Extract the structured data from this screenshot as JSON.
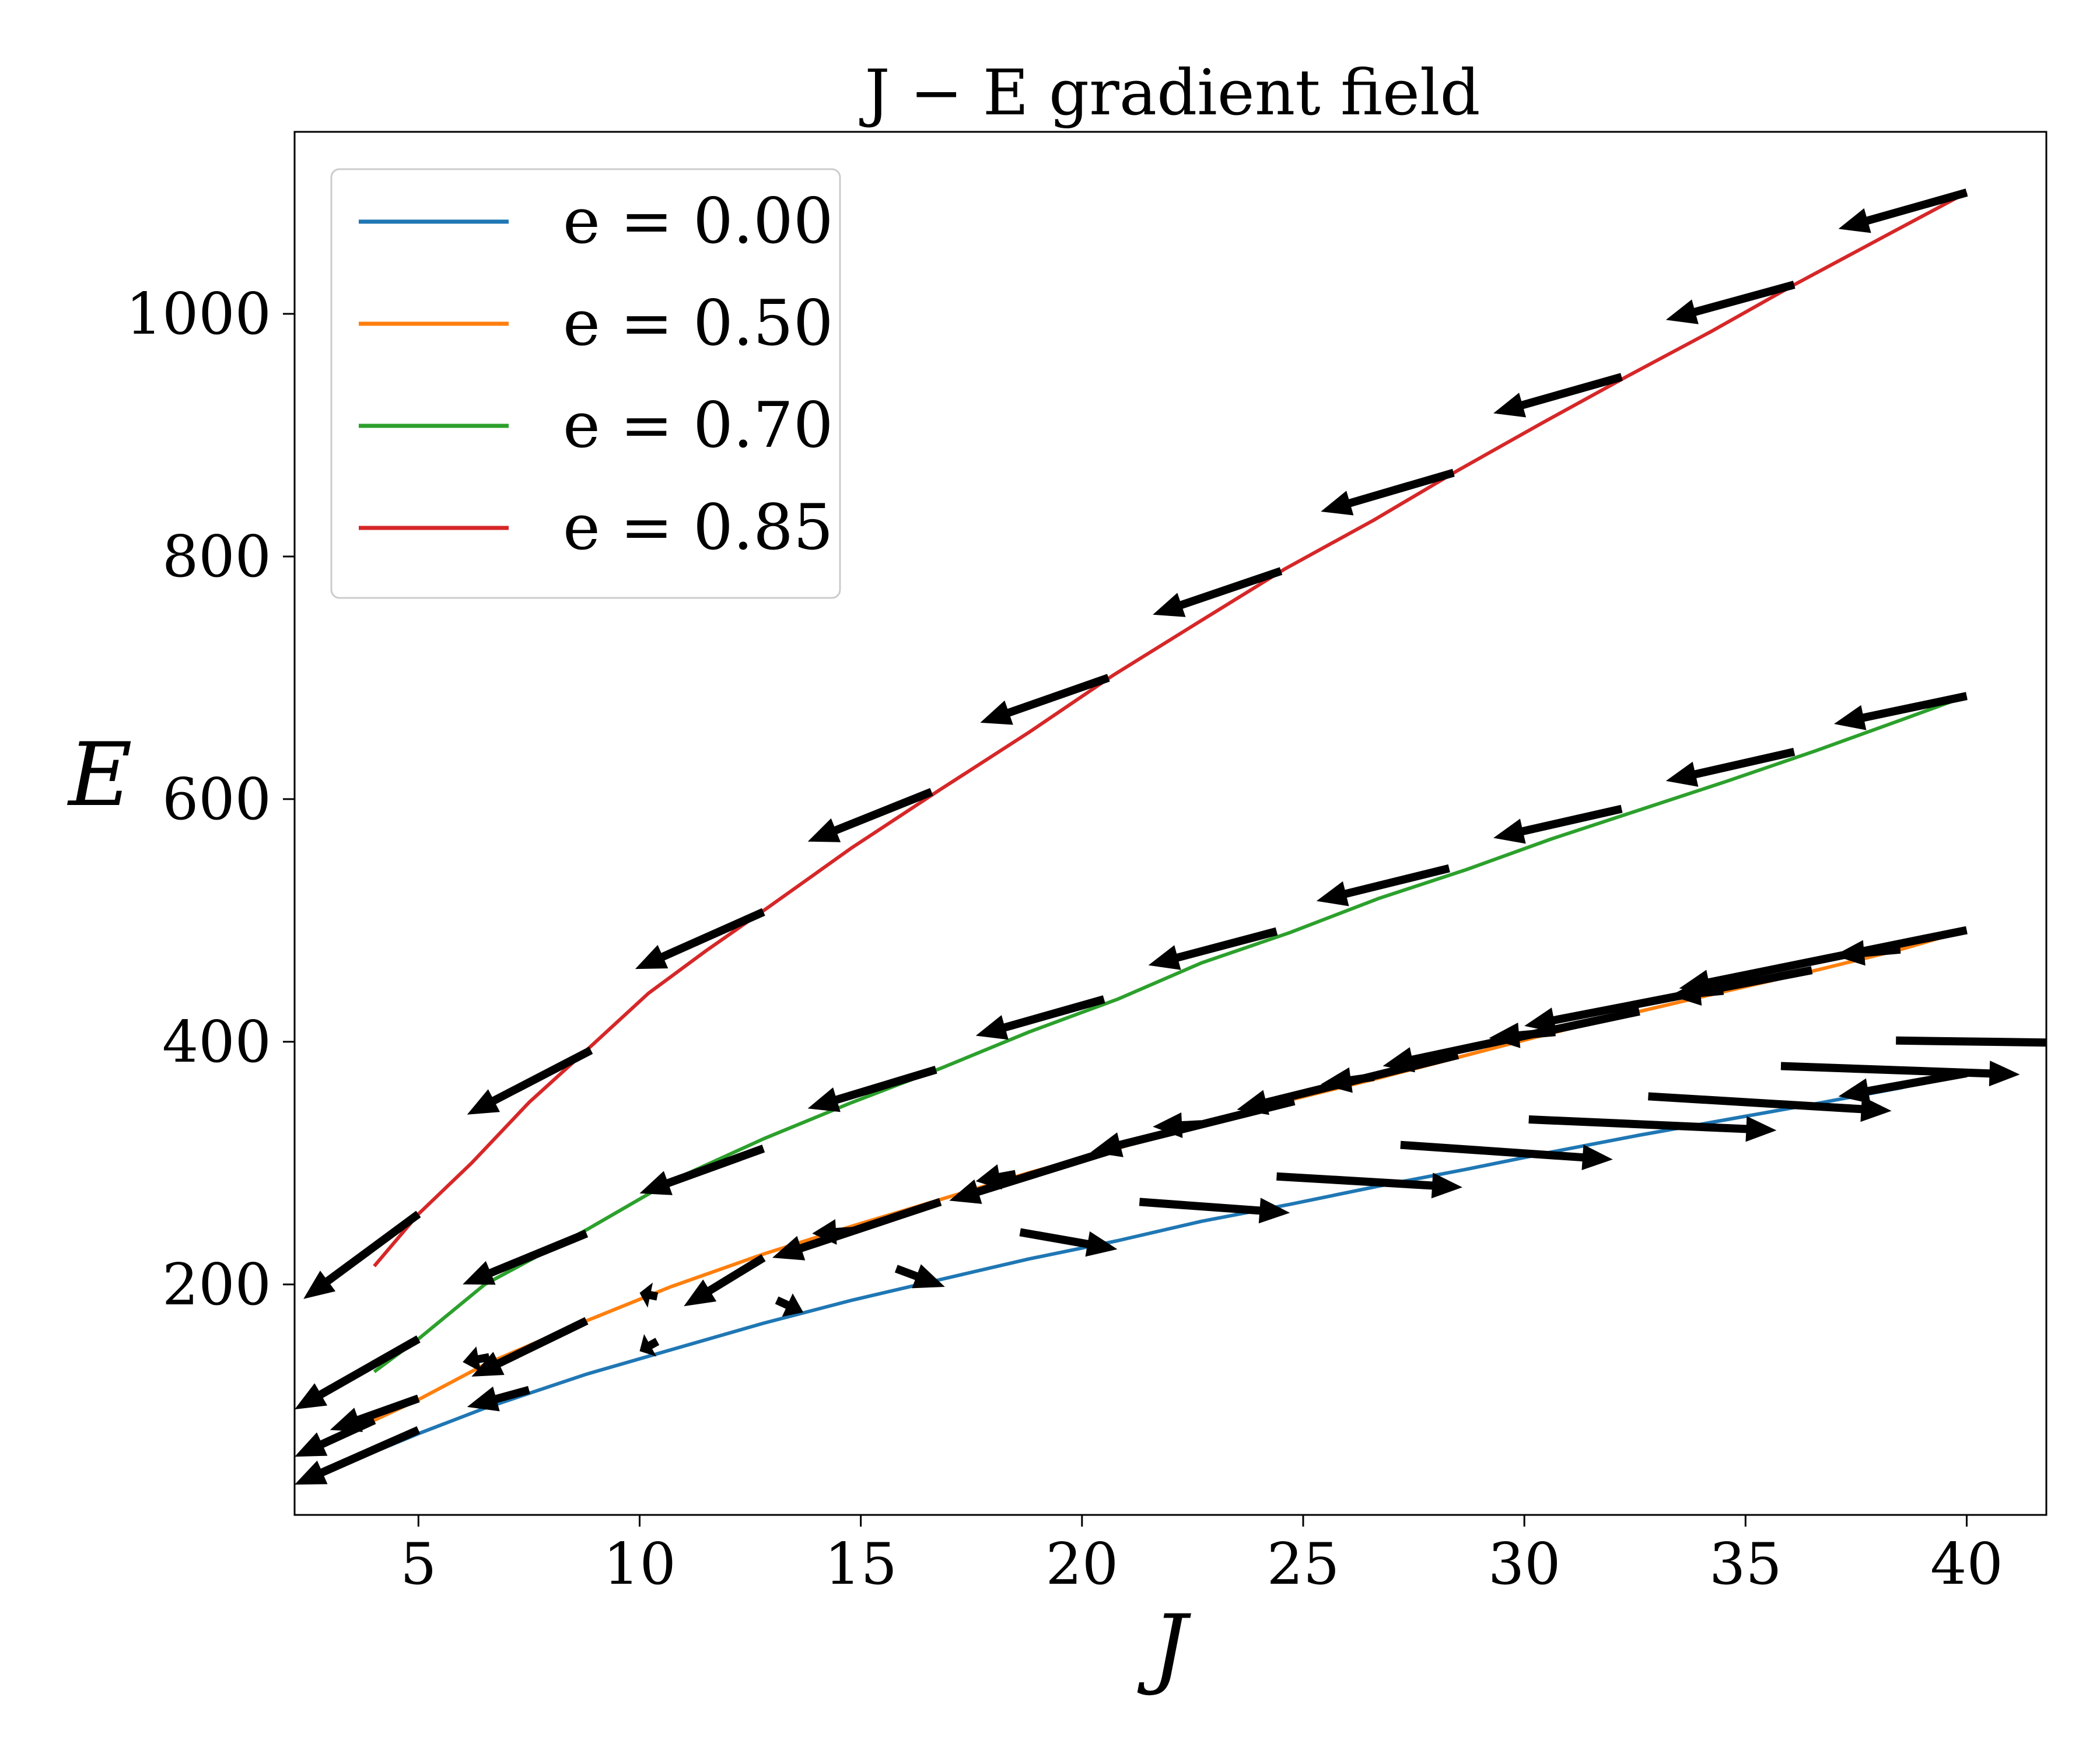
{
  "chart_data": {
    "type": "line",
    "title": "J − E gradient field",
    "xlabel": "J",
    "ylabel": "E",
    "xlim": [
      2.2,
      41.8
    ],
    "ylim": [
      10,
      1150
    ],
    "xticks": [
      5,
      10,
      15,
      20,
      25,
      30,
      35,
      40
    ],
    "yticks": [
      200,
      400,
      600,
      800,
      1000
    ],
    "grid": false,
    "legend_position": "top-left",
    "series": [
      {
        "name": "e = 0.00",
        "color": "#1f77b4",
        "x": [
          4,
          5,
          6.5,
          8.8,
          10.7,
          12.8,
          14.8,
          16.8,
          18.8,
          20.8,
          22.7,
          24.7,
          26.7,
          28.7,
          30.6,
          32.6,
          34.6,
          36.6,
          38.5,
          40
        ],
        "y": [
          62,
          77,
          98,
          126,
          146,
          168,
          187,
          204,
          221,
          236,
          252,
          266,
          281,
          295,
          309,
          323,
          336,
          349,
          362,
          375
        ]
      },
      {
        "name": "e = 0.50",
        "color": "#ff7f0e",
        "x": [
          4,
          5,
          6.5,
          8.8,
          10.7,
          12.8,
          14.8,
          16.8,
          18.8,
          20.8,
          22.7,
          24.7,
          26.7,
          28.7,
          30.6,
          32.6,
          34.6,
          36.6,
          38.5,
          40
        ],
        "y": [
          88,
          105,
          134,
          170,
          198,
          225,
          248,
          270,
          292,
          312,
          333,
          352,
          370,
          389,
          407,
          425,
          442,
          459,
          476,
          492
        ]
      },
      {
        "name": "e = 0.70",
        "color": "#2ca02c",
        "x": [
          4,
          5,
          6.5,
          8.8,
          10.7,
          12.8,
          14.8,
          16.8,
          18.8,
          20.8,
          22.7,
          24.7,
          26.7,
          28.7,
          30.6,
          32.6,
          34.6,
          36.6,
          38.5,
          40
        ],
        "y": [
          128,
          155,
          200,
          245,
          285,
          320,
          350,
          378,
          408,
          435,
          465,
          490,
          518,
          542,
          567,
          591,
          615,
          640,
          665,
          685
        ]
      },
      {
        "name": "e = 0.85",
        "color": "#d62728",
        "x": [
          4,
          5,
          6.2,
          7.5,
          8.8,
          10.2,
          11.5,
          12.8,
          14.8,
          16.8,
          18.8,
          20.7,
          22.6,
          24.6,
          26.6,
          28.5,
          30.4,
          32.3,
          34.2,
          36.1,
          38.1,
          40
        ],
        "y": [
          215,
          258,
          300,
          350,
          393,
          440,
          475,
          508,
          560,
          608,
          655,
          702,
          745,
          790,
          830,
          871,
          910,
          948,
          985,
          1024,
          1063,
          1100
        ]
      }
    ],
    "arrows": [
      {
        "series": "e = 0.00",
        "tail_x": [
          5,
          7.5,
          10.4,
          13.1,
          15.8,
          18.6,
          21.3,
          24.4,
          27.2,
          30.1,
          32.8,
          35.8,
          38.4,
          40
        ],
        "tail_y": [
          80,
          113,
          153,
          187,
          213,
          243,
          268,
          289,
          315,
          336,
          355,
          380,
          401,
          374
        ],
        "head_x": [
          2.2,
          6.1,
          10.0,
          13.7,
          16.9,
          20.8,
          24.7,
          28.6,
          32.0,
          35.7,
          38.3,
          41.2,
          44.6,
          37.1
        ],
        "head_y": [
          35,
          99,
          145,
          177,
          198,
          229,
          259,
          280,
          303,
          327,
          343,
          373,
          398,
          355
        ]
      },
      {
        "series": "e = 0.50",
        "tail_x": [
          4,
          5,
          6.6,
          8.8,
          10.4,
          12.8,
          14.8,
          16.8,
          18.5,
          20.7,
          22.7,
          24.8,
          26.6,
          28.5,
          30.7,
          32.6,
          34.5,
          36.5,
          38.5,
          40
        ],
        "tail_y": [
          88,
          106,
          140,
          170,
          190,
          222,
          244,
          268,
          291,
          311,
          332,
          351,
          371,
          389,
          408,
          425,
          442,
          459,
          476,
          492
        ],
        "head_x": [
          2.2,
          3.0,
          6.0,
          6.2,
          10.0,
          11.0,
          13.9,
          13.0,
          17.6,
          17.0,
          21.6,
          20.2,
          25.4,
          23.5,
          29.2,
          26.8,
          33.3,
          30.0,
          37.0,
          33.5
        ],
        "head_y": [
          58,
          80,
          136,
          124,
          193,
          182,
          242,
          222,
          285,
          269,
          330,
          309,
          365,
          344,
          403,
          380,
          438,
          413,
          471,
          444
        ]
      },
      {
        "series": "e = 0.70",
        "tail_x": [
          5,
          8.8,
          12.8,
          16.7,
          20.5,
          24.4,
          28.3,
          32.2,
          36.1,
          40
        ],
        "tail_y": [
          155,
          242,
          312,
          377,
          435,
          491,
          543,
          592,
          639,
          685
        ],
        "head_x": [
          2.2,
          6.0,
          10.0,
          13.8,
          17.6,
          21.5,
          25.3,
          29.3,
          33.2,
          37.0
        ],
        "head_y": [
          97,
          200,
          275,
          345,
          405,
          463,
          516,
          568,
          615,
          662
        ]
      },
      {
        "series": "e = 0.85",
        "tail_x": [
          5,
          8.9,
          12.8,
          16.6,
          20.6,
          24.5,
          28.4,
          32.2,
          36.1,
          40
        ],
        "tail_y": [
          258,
          393,
          507,
          606,
          700,
          788,
          869,
          948,
          1024,
          1100
        ],
        "head_x": [
          2.4,
          6.1,
          9.9,
          13.8,
          17.7,
          21.6,
          25.4,
          29.3,
          33.2,
          37.1
        ],
        "head_y": [
          188,
          340,
          460,
          565,
          663,
          752,
          837,
          918,
          995,
          1070
        ]
      }
    ]
  }
}
